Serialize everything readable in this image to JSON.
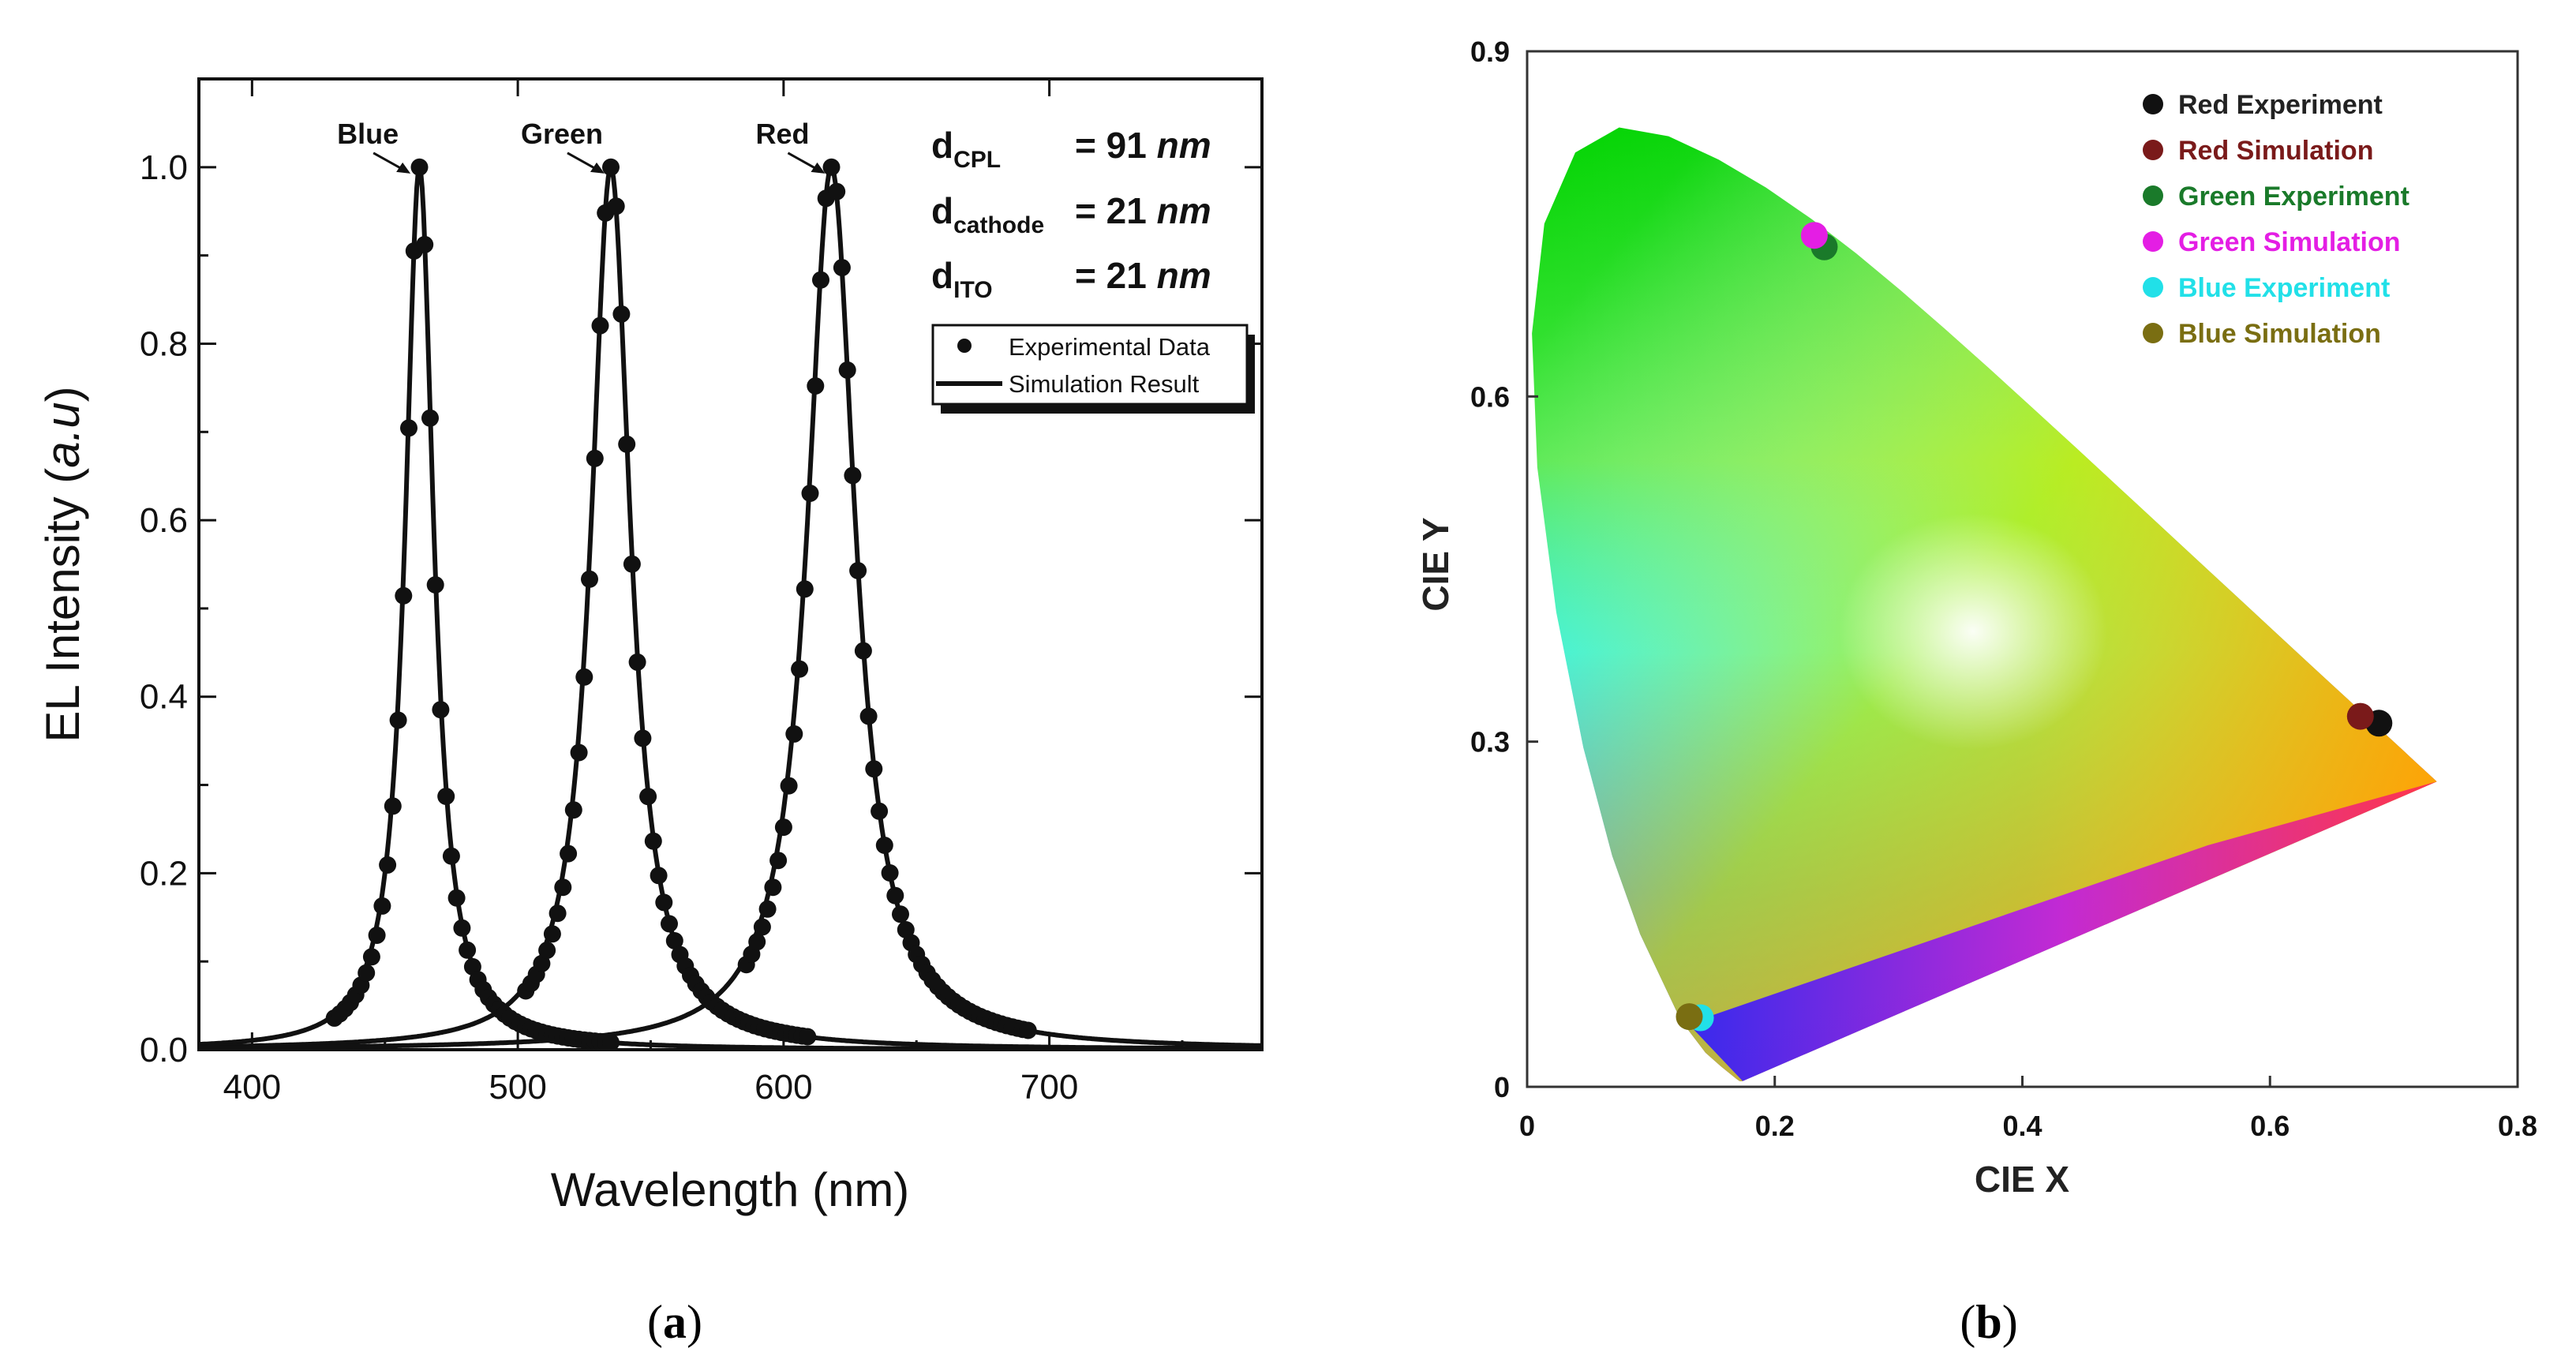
{
  "chart_data": [
    {
      "type": "line",
      "panel_label": "a",
      "xlabel": "Wavelength (nm)",
      "ylabel_prefix": "EL Intensity (",
      "ylabel_italic": "a.u",
      "ylabel_suffix": ")",
      "xlim": [
        380,
        780
      ],
      "ylim": [
        0,
        1.1
      ],
      "xticks": [
        "400",
        "500",
        "600",
        "700"
      ],
      "yticks": [
        "0.0",
        "0.2",
        "0.4",
        "0.6",
        "0.8",
        "1.0"
      ],
      "peak_labels": [
        {
          "text": "Blue",
          "peak_nm": 462
        },
        {
          "text": "Green",
          "peak_nm": 535
        },
        {
          "text": "Red",
          "peak_nm": 618
        }
      ],
      "parameters": [
        {
          "name": "d",
          "sub": "CPL",
          "value": "= 91",
          "unit": "nm"
        },
        {
          "name": "d",
          "sub": "cathode",
          "value": "= 21",
          "unit": "nm"
        },
        {
          "name": "d",
          "sub": "ITO",
          "value": "= 21",
          "unit": "nm"
        }
      ],
      "legend": [
        "Experimental Data",
        "Simulation Result"
      ],
      "series": [
        {
          "name": "Blue",
          "center_nm": 463,
          "hwhm_nm": 6.5,
          "peak": 1.0
        },
        {
          "name": "Green",
          "center_nm": 535,
          "hwhm_nm": 9,
          "peak": 1.0
        },
        {
          "name": "Red",
          "center_nm": 618,
          "hwhm_nm": 11,
          "peak": 1.0
        }
      ]
    },
    {
      "type": "scatter",
      "panel_label": "b",
      "xlabel": "CIE X",
      "ylabel": "CIE Y",
      "xlim": [
        0,
        0.8
      ],
      "ylim": [
        0,
        0.9
      ],
      "xticks": [
        "0",
        "0.2",
        "0.4",
        "0.6",
        "0.8"
      ],
      "yticks": [
        "0",
        "0.3",
        "0.6",
        "0.9"
      ],
      "points": [
        {
          "name": "Red Experiment",
          "x": 0.688,
          "y": 0.316,
          "color": "#111111"
        },
        {
          "name": "Red Simulation",
          "x": 0.673,
          "y": 0.322,
          "color": "#7a1a1a"
        },
        {
          "name": "Green Experiment",
          "x": 0.24,
          "y": 0.73,
          "color": "#1a7a2a"
        },
        {
          "name": "Green Simulation",
          "x": 0.232,
          "y": 0.74,
          "color": "#e41ee4"
        },
        {
          "name": "Blue Experiment",
          "x": 0.14,
          "y": 0.06,
          "color": "#21e0e8"
        },
        {
          "name": "Blue Simulation",
          "x": 0.131,
          "y": 0.061,
          "color": "#7a6e12"
        }
      ]
    }
  ]
}
